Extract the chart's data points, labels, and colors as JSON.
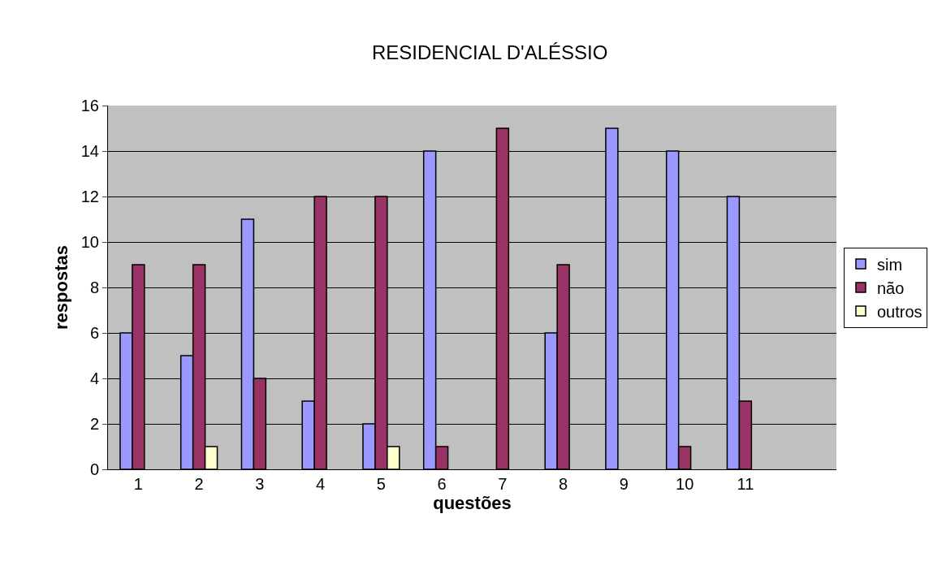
{
  "chart_data": {
    "type": "bar",
    "title": "RESIDENCIAL D'ALÉSSIO",
    "xlabel": "questões",
    "ylabel": "respostas",
    "categories": [
      "1",
      "2",
      "3",
      "4",
      "5",
      "6",
      "7",
      "8",
      "9",
      "10",
      "11",
      null
    ],
    "series": [
      {
        "name": "sim",
        "color": "#9999ff",
        "values": [
          6,
          5,
          11,
          3,
          2,
          14,
          null,
          6,
          15,
          14,
          12,
          null
        ]
      },
      {
        "name": "não",
        "color": "#993366",
        "values": [
          9,
          9,
          4,
          12,
          12,
          1,
          15,
          9,
          null,
          1,
          3,
          null
        ]
      },
      {
        "name": "outros",
        "color": "#ffffcc",
        "values": [
          null,
          1,
          null,
          null,
          1,
          null,
          null,
          null,
          null,
          null,
          null,
          null
        ]
      }
    ],
    "ylim": [
      0,
      16
    ],
    "yticks": [
      0,
      2,
      4,
      6,
      8,
      10,
      12,
      14,
      16
    ],
    "grid": "y",
    "legend": "right"
  }
}
